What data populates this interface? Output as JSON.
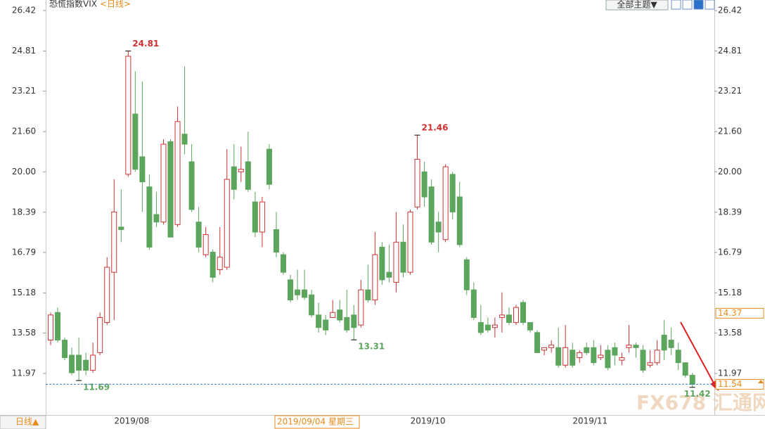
{
  "chart_data": {
    "type": "candlestick",
    "title": "恐慌指数VIX",
    "period": "<日线>",
    "period_button": "日线▲",
    "theme_button": "全部主题▼",
    "watermark": "FX678 汇通网",
    "up_color": "#cc3333",
    "down_color": "#5ca55c",
    "ylim": [
      10.32,
      26.84
    ],
    "yticks": [
      26.42,
      24.81,
      23.21,
      {
        "value": 21.6,
        "label": "21.60"
      },
      {
        "value": 20,
        "label": "20.00"
      },
      18.39,
      16.79,
      15.18,
      13.58,
      11.97
    ],
    "crosshair": {
      "date_label": "2019/09/04 星期三",
      "value": 14.37
    },
    "categories": [
      null,
      null,
      null,
      null,
      null,
      null,
      null,
      null,
      null,
      null,
      null,
      "2019/08",
      null,
      null,
      null,
      null,
      null,
      null,
      null,
      null,
      null,
      null,
      null,
      null,
      null,
      null,
      null,
      null,
      null,
      null,
      null,
      null,
      null,
      null,
      null,
      null,
      null,
      null,
      null,
      null,
      null,
      null,
      null,
      null,
      null,
      null,
      null,
      null,
      null,
      null,
      null,
      null,
      null,
      "2019/10",
      null,
      null,
      null,
      null,
      null,
      null,
      null,
      null,
      null,
      null,
      null,
      null,
      null,
      null,
      null,
      null,
      null,
      null,
      null,
      null,
      null,
      null,
      "2019/11",
      null,
      null,
      null,
      null,
      null,
      null,
      null,
      null,
      null,
      null,
      null,
      null,
      null,
      null,
      null
    ],
    "open": [
      13.3,
      14.4,
      13.3,
      12.7,
      12.7,
      12.5,
      12.1,
      12.8,
      14.0,
      16.0,
      17.8,
      19.9,
      22.3,
      20.6,
      19.4,
      18.3,
      18.0,
      21.2,
      17.9,
      21.5,
      20.4,
      18.0,
      16.7,
      16.8,
      16.1,
      16.2,
      20.2,
      20.0,
      20.4,
      18.8,
      17.6,
      20.9,
      17.7,
      16.7,
      15.7,
      15.3,
      15.3,
      15.1,
      14.3,
      14.1,
      14.2,
      14.5,
      14.2,
      14.3,
      13.9,
      15.3,
      14.9,
      17.0,
      16.0,
      15.6,
      17.2,
      16.0,
      18.6,
      20.0,
      19.4,
      18.0,
      17.3,
      19.9,
      19.0,
      16.5,
      15.3,
      14.0,
      13.9,
      13.8,
      14.2,
      14.3,
      14.0,
      14.8,
      14.0,
      13.6,
      12.9,
      13.0,
      13.0,
      12.3,
      12.9,
      12.6,
      13.0,
      13.0,
      12.6,
      12.9,
      13.0,
      12.5,
      13.0,
      13.1,
      12.9,
      12.3,
      12.4,
      13.5,
      13.3,
      12.9,
      12.4,
      11.9
    ],
    "high": [
      14.4,
      14.6,
      13.4,
      13.0,
      13.4,
      12.8,
      13.2,
      14.4,
      16.6,
      19.7,
      19.3,
      24.81,
      24.0,
      23.6,
      19.9,
      19.2,
      21.3,
      21.3,
      22.6,
      24.2,
      21.1,
      18.6,
      17.8,
      16.9,
      17.8,
      20.9,
      21.1,
      21.0,
      21.6,
      19.2,
      19.0,
      21.1,
      18.4,
      16.8,
      15.9,
      16.1,
      16.1,
      15.3,
      14.8,
      14.3,
      14.9,
      14.9,
      15.3,
      14.7,
      15.7,
      16.3,
      17.6,
      17.2,
      17.1,
      18.4,
      17.9,
      18.5,
      21.46,
      20.4,
      19.7,
      18.4,
      20.3,
      20.0,
      19.6,
      16.6,
      15.6,
      14.7,
      14.2,
      14.2,
      15.2,
      14.6,
      14.7,
      14.9,
      14.0,
      13.7,
      13.0,
      13.3,
      13.8,
      13.9,
      13.2,
      12.9,
      13.2,
      13.3,
      13.1,
      13.1,
      13.2,
      12.8,
      13.9,
      13.2,
      13.1,
      12.9,
      13.3,
      14.1,
      13.8,
      13.2,
      12.4,
      12.0
    ],
    "low": [
      13.1,
      13.2,
      12.5,
      11.9,
      11.69,
      11.9,
      12.0,
      12.7,
      13.9,
      14.1,
      17.2,
      19.8,
      20.0,
      18.4,
      16.9,
      17.8,
      17.9,
      17.4,
      17.8,
      20.7,
      18.4,
      16.8,
      16.6,
      15.6,
      15.9,
      16.1,
      18.9,
      19.6,
      19.2,
      17.4,
      17.0,
      19.3,
      16.6,
      15.9,
      14.8,
      14.9,
      14.9,
      14.2,
      13.6,
      13.5,
      14.2,
      14.0,
      13.6,
      13.31,
      13.8,
      14.8,
      14.7,
      15.5,
      15.6,
      15.2,
      15.8,
      15.9,
      18.5,
      18.6,
      17.1,
      16.8,
      17.2,
      18.1,
      17.0,
      15.1,
      14.1,
      13.5,
      13.6,
      13.4,
      13.6,
      13.9,
      13.9,
      13.9,
      13.6,
      12.8,
      12.7,
      12.8,
      12.2,
      12.2,
      12.2,
      12.4,
      12.7,
      12.3,
      12.5,
      12.1,
      12.3,
      12.3,
      12.8,
      12.6,
      12.0,
      12.2,
      12.3,
      12.5,
      12.7,
      12.1,
      11.8,
      11.42
    ],
    "close": [
      14.3,
      13.3,
      12.6,
      12.0,
      12.1,
      12.1,
      12.7,
      14.2,
      16.2,
      18.4,
      17.7,
      24.6,
      20.1,
      19.6,
      17.0,
      18.0,
      21.1,
      17.4,
      22.0,
      21.1,
      18.5,
      17.0,
      17.5,
      15.8,
      16.6,
      19.7,
      19.3,
      20.1,
      19.3,
      17.6,
      18.8,
      19.5,
      16.8,
      16.0,
      14.9,
      15.1,
      15.0,
      14.3,
      13.8,
      13.7,
      14.4,
      14.1,
      13.7,
      13.8,
      15.3,
      14.9,
      16.7,
      15.7,
      15.8,
      17.2,
      16.0,
      18.4,
      20.5,
      19.0,
      17.2,
      17.6,
      20.2,
      18.4,
      17.1,
      15.3,
      14.2,
      13.6,
      13.7,
      13.9,
      14.3,
      14.0,
      14.6,
      14.0,
      13.7,
      12.8,
      13.0,
      13.1,
      12.3,
      13.0,
      12.3,
      12.8,
      12.8,
      12.4,
      12.7,
      12.2,
      12.7,
      12.6,
      13.1,
      13.0,
      12.1,
      12.4,
      12.9,
      12.9,
      13.0,
      12.4,
      11.9,
      11.54
    ]
  }
}
